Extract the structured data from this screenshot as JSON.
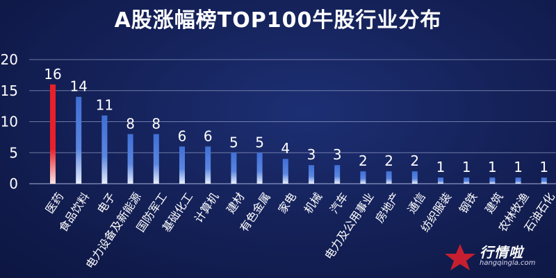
{
  "chart_data": {
    "type": "bar",
    "title": "A股涨幅榜TOP100牛股行业分布",
    "categories": [
      "医药",
      "食品饮料",
      "电子",
      "电力设备及新能源",
      "国防军工",
      "基础化工",
      "计算机",
      "建材",
      "有色金属",
      "家电",
      "机械",
      "汽车",
      "电力及公用事业",
      "房地产",
      "通信",
      "纺织服装",
      "钢铁",
      "建筑",
      "农林牧渔",
      "石油石化"
    ],
    "values": [
      16,
      14,
      11,
      8,
      8,
      6,
      6,
      5,
      5,
      4,
      3,
      3,
      2,
      2,
      2,
      1,
      1,
      1,
      1,
      1
    ],
    "yticks": [
      0,
      5,
      10,
      15,
      20
    ],
    "ylim": [
      0,
      20
    ],
    "grid": true,
    "highlight_color": "#e8202a",
    "bar_color": "#4a78d8"
  },
  "watermark": {
    "logo_text": "行情啦",
    "logo_sub": "hangqingla.com"
  }
}
